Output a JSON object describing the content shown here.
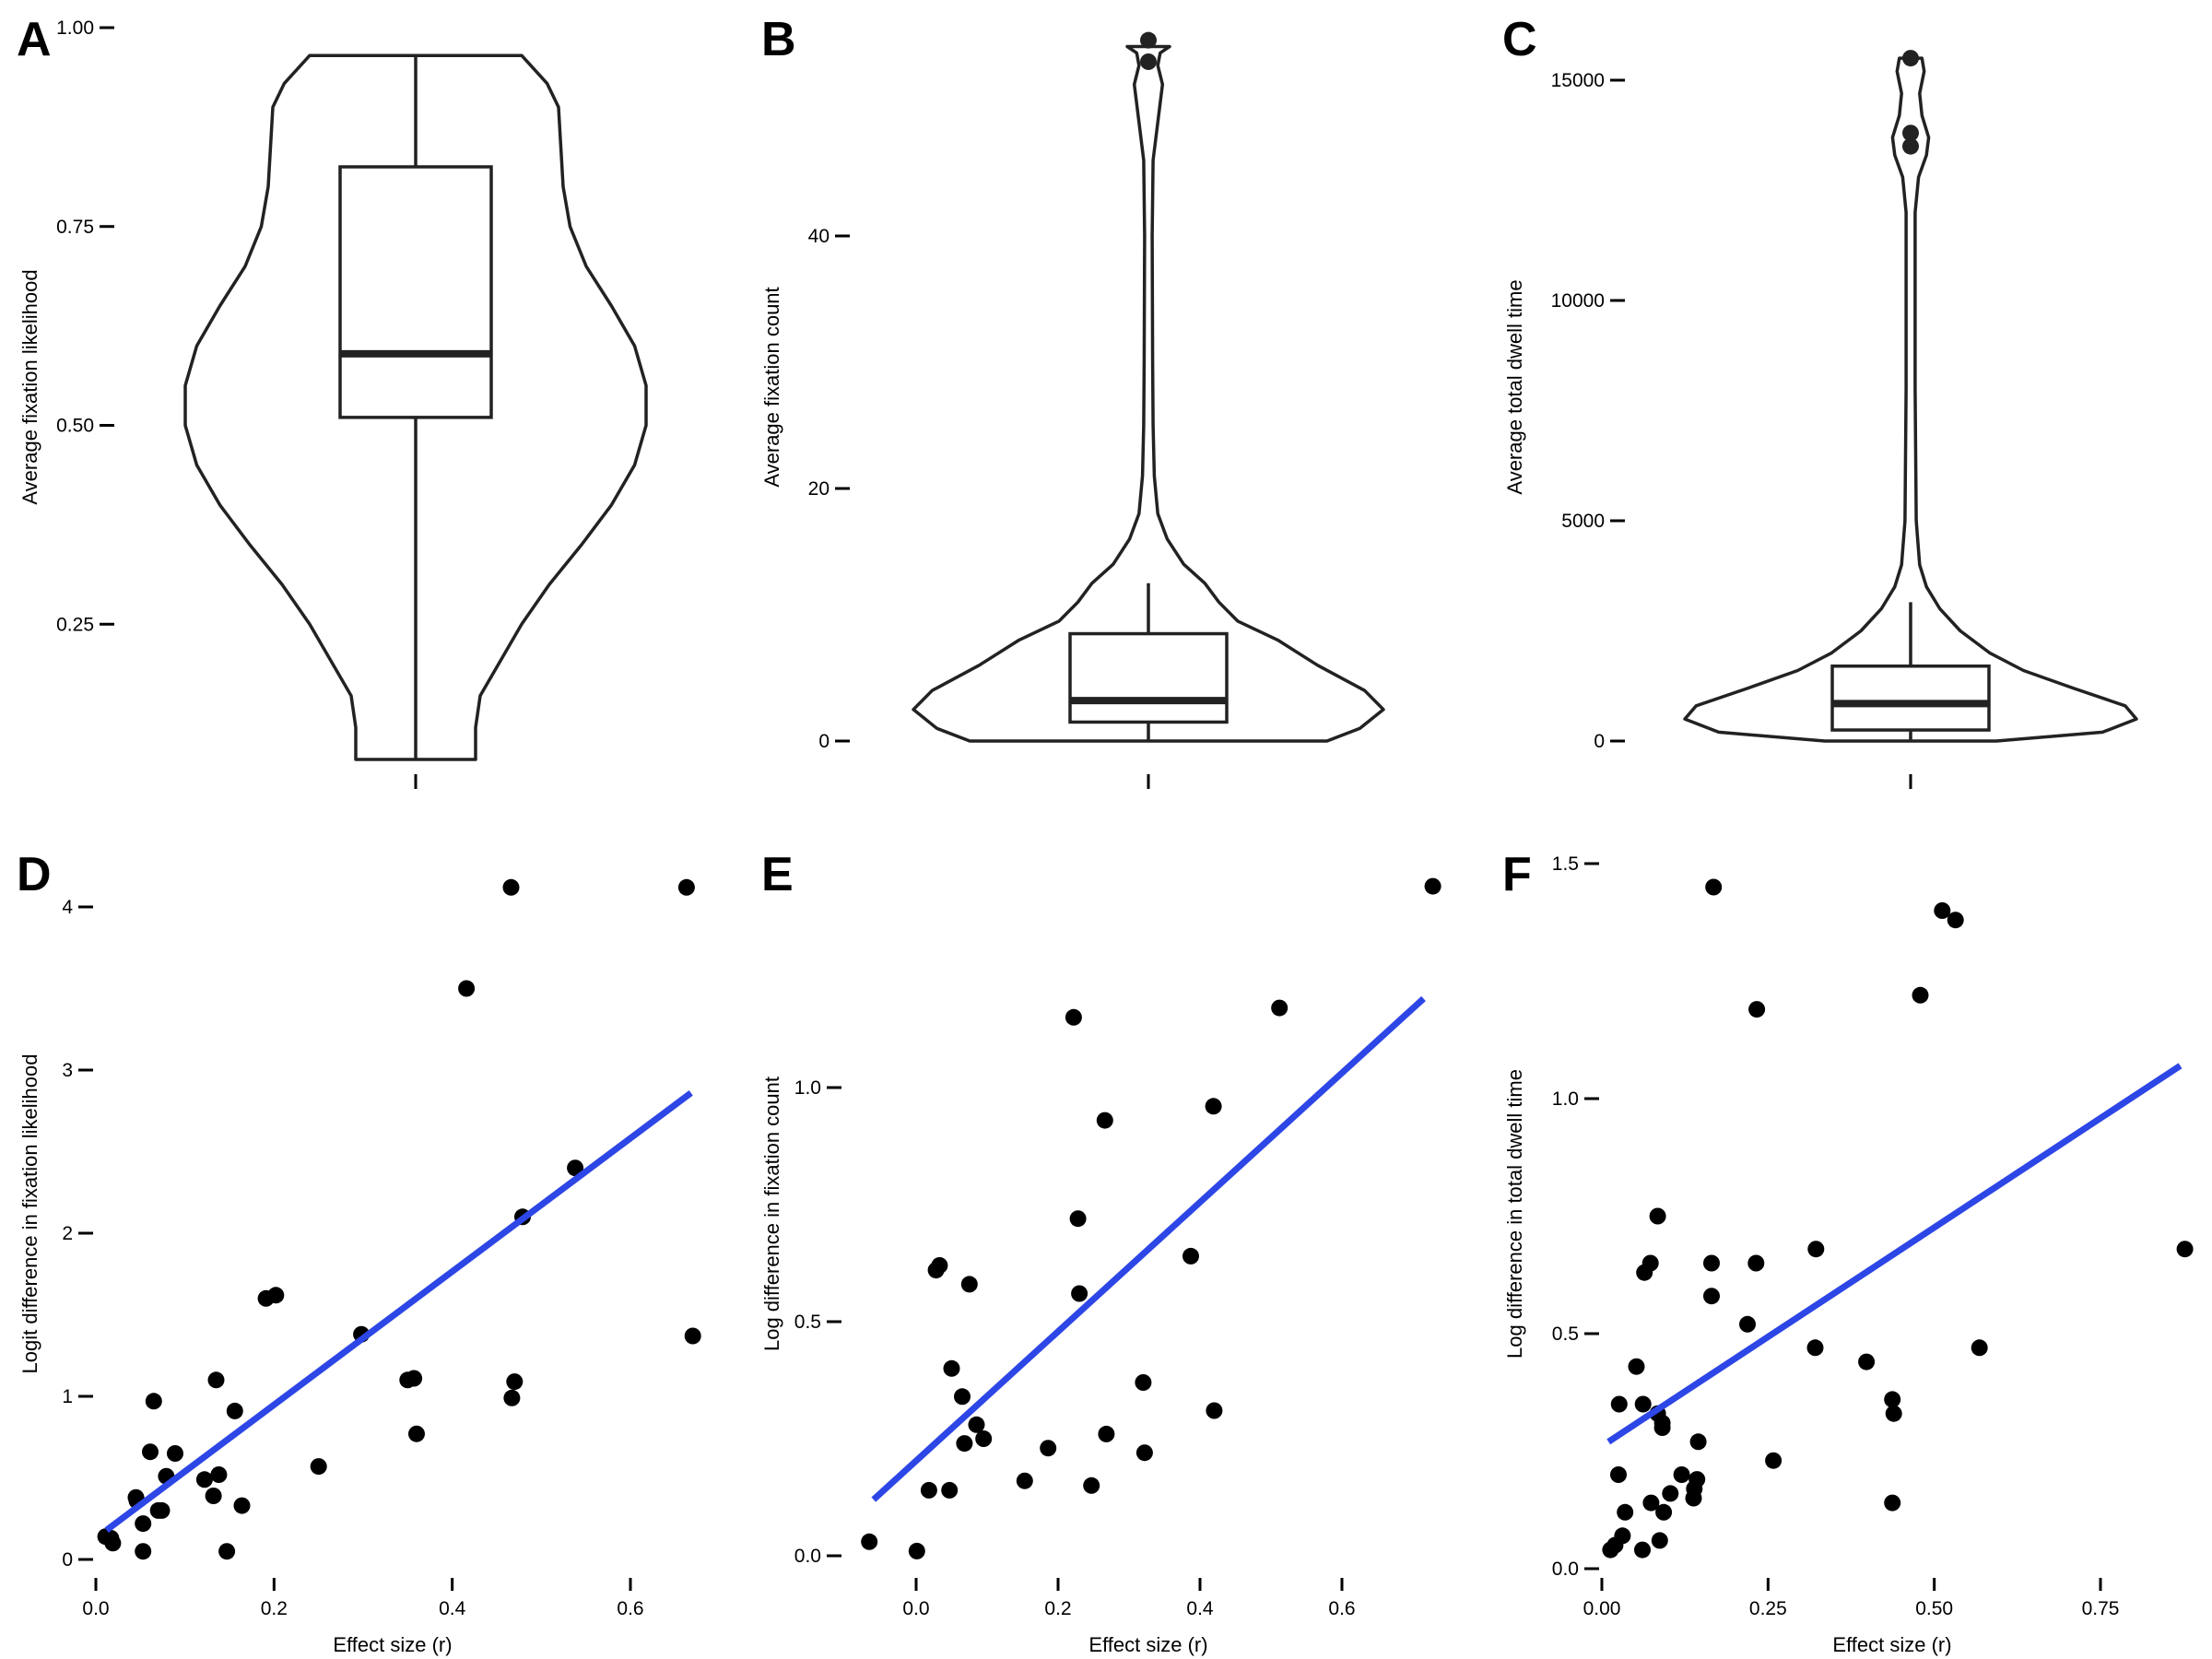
{
  "figure": {
    "panels": [
      "A",
      "B",
      "C",
      "D",
      "E",
      "F"
    ],
    "colors": {
      "fit_line": "#2D46E6",
      "points": "#000000",
      "outline": "#222222"
    }
  },
  "chart_data": [
    {
      "panel": "A",
      "type": "violin",
      "ylabel": "Average fixation likelihood",
      "ylim": [
        0.0,
        1.0
      ],
      "yticks": [
        "0.25",
        "0.50",
        "0.75",
        "1.00"
      ],
      "ytick_values": [
        0.25,
        0.5,
        0.75,
        1.0
      ],
      "data_range": [
        0.08,
        0.965
      ],
      "box": {
        "min": 0.08,
        "q1": 0.51,
        "median": 0.59,
        "q3": 0.825,
        "max": 0.965
      },
      "outliers": [],
      "density": [
        [
          0.08,
          0.26
        ],
        [
          0.12,
          0.26
        ],
        [
          0.16,
          0.28
        ],
        [
          0.2,
          0.36
        ],
        [
          0.25,
          0.46
        ],
        [
          0.3,
          0.58
        ],
        [
          0.35,
          0.72
        ],
        [
          0.4,
          0.85
        ],
        [
          0.45,
          0.95
        ],
        [
          0.5,
          1.0
        ],
        [
          0.55,
          1.0
        ],
        [
          0.6,
          0.95
        ],
        [
          0.65,
          0.85
        ],
        [
          0.7,
          0.74
        ],
        [
          0.75,
          0.67
        ],
        [
          0.8,
          0.64
        ],
        [
          0.85,
          0.63
        ],
        [
          0.9,
          0.62
        ],
        [
          0.93,
          0.57
        ],
        [
          0.965,
          0.46
        ]
      ]
    },
    {
      "panel": "B",
      "type": "violin",
      "ylabel": "Average fixation count",
      "ylim": [
        0,
        55
      ],
      "yticks": [
        "0",
        "20",
        "40"
      ],
      "ytick_values": [
        0,
        20,
        40
      ],
      "data_range": [
        0,
        55
      ],
      "box": {
        "min": 0,
        "q1": 1.5,
        "median": 3.2,
        "q3": 8.5,
        "max": 12.5
      },
      "outliers": [
        55.5,
        53.8
      ],
      "density": [
        [
          0,
          0.76
        ],
        [
          1,
          0.9
        ],
        [
          2.5,
          1.0
        ],
        [
          4,
          0.92
        ],
        [
          6,
          0.72
        ],
        [
          8,
          0.55
        ],
        [
          9.5,
          0.38
        ],
        [
          11,
          0.3
        ],
        [
          12.5,
          0.24
        ],
        [
          14,
          0.15
        ],
        [
          16,
          0.08
        ],
        [
          18,
          0.04
        ],
        [
          21,
          0.025
        ],
        [
          25,
          0.02
        ],
        [
          30,
          0.018
        ],
        [
          40,
          0.016
        ],
        [
          46,
          0.02
        ],
        [
          49,
          0.04
        ],
        [
          52,
          0.06
        ],
        [
          53.5,
          0.04
        ],
        [
          54.5,
          0.05
        ],
        [
          55,
          0.09
        ]
      ]
    },
    {
      "panel": "C",
      "type": "violin",
      "ylabel": "Average total dwell time",
      "ylim": [
        0,
        15500
      ],
      "yticks": [
        "0",
        "5000",
        "10000",
        "15000"
      ],
      "ytick_values": [
        0,
        5000,
        10000,
        15000
      ],
      "data_range": [
        0,
        15500
      ],
      "box": {
        "min": 0,
        "q1": 250,
        "median": 850,
        "q3": 1700,
        "max": 3150
      },
      "outliers": [
        15500,
        13800,
        13500
      ],
      "density": [
        [
          0,
          0.38
        ],
        [
          200,
          0.85
        ],
        [
          500,
          1.0
        ],
        [
          800,
          0.95
        ],
        [
          1200,
          0.72
        ],
        [
          1600,
          0.5
        ],
        [
          2000,
          0.35
        ],
        [
          2500,
          0.22
        ],
        [
          3000,
          0.13
        ],
        [
          3500,
          0.07
        ],
        [
          4000,
          0.04
        ],
        [
          5000,
          0.025
        ],
        [
          8000,
          0.02
        ],
        [
          12000,
          0.02
        ],
        [
          12800,
          0.035
        ],
        [
          13300,
          0.07
        ],
        [
          13700,
          0.08
        ],
        [
          14200,
          0.05
        ],
        [
          14700,
          0.04
        ],
        [
          15200,
          0.06
        ],
        [
          15500,
          0.05
        ]
      ]
    },
    {
      "panel": "D",
      "type": "scatter",
      "xlabel": "Effect size (r)",
      "ylabel": "Logit difference in fixation likelihood",
      "xlim": [
        0.0,
        0.68
      ],
      "ylim": [
        0.0,
        4.12
      ],
      "xticks": [
        "0.0",
        "0.2",
        "0.4",
        "0.6"
      ],
      "xtick_values": [
        0.0,
        0.2,
        0.4,
        0.6
      ],
      "yticks": [
        "0",
        "1",
        "2",
        "3",
        "4"
      ],
      "ytick_values": [
        0,
        1,
        2,
        3,
        4
      ],
      "fit": {
        "x": [
          0.012,
          0.668
        ],
        "y": [
          0.18,
          2.86
        ]
      },
      "points": [
        [
          0.663,
          4.12
        ],
        [
          0.466,
          4.12
        ],
        [
          0.416,
          3.5
        ],
        [
          0.538,
          2.4
        ],
        [
          0.479,
          2.1
        ],
        [
          0.298,
          1.38
        ],
        [
          0.67,
          1.37
        ],
        [
          0.191,
          1.6
        ],
        [
          0.202,
          1.62
        ],
        [
          0.135,
          1.1
        ],
        [
          0.35,
          1.1
        ],
        [
          0.357,
          1.11
        ],
        [
          0.47,
          1.09
        ],
        [
          0.467,
          0.99
        ],
        [
          0.065,
          0.97
        ],
        [
          0.156,
          0.91
        ],
        [
          0.089,
          0.65
        ],
        [
          0.061,
          0.66
        ],
        [
          0.36,
          0.77
        ],
        [
          0.25,
          0.57
        ],
        [
          0.079,
          0.51
        ],
        [
          0.122,
          0.49
        ],
        [
          0.138,
          0.52
        ],
        [
          0.045,
          0.38
        ],
        [
          0.046,
          0.36
        ],
        [
          0.132,
          0.39
        ],
        [
          0.074,
          0.3
        ],
        [
          0.07,
          0.3
        ],
        [
          0.164,
          0.33
        ],
        [
          0.053,
          0.22
        ],
        [
          0.017,
          0.13
        ],
        [
          0.011,
          0.14
        ],
        [
          0.019,
          0.1
        ],
        [
          0.053,
          0.05
        ],
        [
          0.147,
          0.05
        ]
      ]
    },
    {
      "panel": "E",
      "type": "scatter",
      "xlabel": "Effect size (r)",
      "ylabel": "Log difference in fixation count",
      "xlim": [
        -0.075,
        0.73
      ],
      "ylim": [
        0.0,
        1.43
      ],
      "xticks": [
        "0.0",
        "0.2",
        "0.4",
        "0.6"
      ],
      "xtick_values": [
        0.0,
        0.2,
        0.4,
        0.6
      ],
      "yticks": [
        "0.0",
        "0.5",
        "1.0"
      ],
      "ytick_values": [
        0.0,
        0.5,
        1.0
      ],
      "fit": {
        "x": [
          -0.06,
          0.715
        ],
        "y": [
          0.12,
          1.19
        ]
      },
      "points": [
        [
          0.728,
          1.43
        ],
        [
          0.512,
          1.17
        ],
        [
          0.222,
          1.15
        ],
        [
          0.419,
          0.96
        ],
        [
          0.266,
          0.93
        ],
        [
          0.228,
          0.72
        ],
        [
          0.387,
          0.64
        ],
        [
          0.033,
          0.62
        ],
        [
          0.028,
          0.61
        ],
        [
          0.075,
          0.58
        ],
        [
          0.23,
          0.56
        ],
        [
          0.05,
          0.4
        ],
        [
          0.32,
          0.37
        ],
        [
          0.065,
          0.34
        ],
        [
          0.42,
          0.31
        ],
        [
          0.085,
          0.28
        ],
        [
          0.268,
          0.26
        ],
        [
          0.095,
          0.25
        ],
        [
          0.068,
          0.24
        ],
        [
          0.322,
          0.22
        ],
        [
          0.186,
          0.23
        ],
        [
          0.153,
          0.16
        ],
        [
          0.018,
          0.14
        ],
        [
          0.047,
          0.14
        ],
        [
          0.247,
          0.15
        ],
        [
          -0.066,
          0.03
        ],
        [
          0.001,
          0.01
        ]
      ]
    },
    {
      "panel": "F",
      "type": "scatter",
      "xlabel": "Effect size (r)",
      "ylabel": "Log difference in total dwell time",
      "xlim": [
        0.0,
        0.87
      ],
      "ylim": [
        0.0,
        1.5
      ],
      "xticks": [
        "0.00",
        "0.25",
        "0.50",
        "0.75"
      ],
      "xtick_values": [
        0.0,
        0.25,
        0.5,
        0.75
      ],
      "yticks": [
        "0.0",
        "0.5",
        "1.0",
        "1.5"
      ],
      "ytick_values": [
        0.0,
        0.5,
        1.0,
        1.5
      ],
      "fit": {
        "x": [
          0.01,
          0.87
        ],
        "y": [
          0.27,
          1.07
        ]
      },
      "points": [
        [
          0.168,
          1.45
        ],
        [
          0.512,
          1.4
        ],
        [
          0.532,
          1.38
        ],
        [
          0.479,
          1.22
        ],
        [
          0.233,
          1.19
        ],
        [
          0.877,
          0.68
        ],
        [
          0.322,
          0.68
        ],
        [
          0.084,
          0.75
        ],
        [
          0.073,
          0.65
        ],
        [
          0.165,
          0.65
        ],
        [
          0.232,
          0.65
        ],
        [
          0.064,
          0.63
        ],
        [
          0.165,
          0.58
        ],
        [
          0.219,
          0.52
        ],
        [
          0.568,
          0.47
        ],
        [
          0.321,
          0.47
        ],
        [
          0.398,
          0.44
        ],
        [
          0.052,
          0.43
        ],
        [
          0.437,
          0.36
        ],
        [
          0.026,
          0.35
        ],
        [
          0.062,
          0.35
        ],
        [
          0.084,
          0.33
        ],
        [
          0.091,
          0.31
        ],
        [
          0.439,
          0.33
        ],
        [
          0.091,
          0.3
        ],
        [
          0.145,
          0.27
        ],
        [
          0.258,
          0.23
        ],
        [
          0.025,
          0.2
        ],
        [
          0.12,
          0.2
        ],
        [
          0.143,
          0.19
        ],
        [
          0.139,
          0.17
        ],
        [
          0.103,
          0.16
        ],
        [
          0.074,
          0.14
        ],
        [
          0.138,
          0.15
        ],
        [
          0.035,
          0.12
        ],
        [
          0.093,
          0.12
        ],
        [
          0.437,
          0.14
        ],
        [
          0.087,
          0.06
        ],
        [
          0.031,
          0.07
        ],
        [
          0.061,
          0.04
        ],
        [
          0.013,
          0.04
        ],
        [
          0.02,
          0.05
        ]
      ]
    }
  ]
}
